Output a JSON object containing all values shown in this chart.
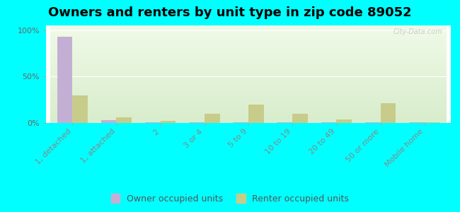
{
  "title": "Owners and renters by unit type in zip code 89052",
  "categories": [
    "1, detached",
    "1, attached",
    "2",
    "3 or 4",
    "5 to 9",
    "10 to 19",
    "20 to 49",
    "50 or more",
    "Mobile home"
  ],
  "owner_values": [
    93,
    3,
    0.5,
    0.5,
    0.5,
    0.5,
    0.5,
    0.5,
    0.5
  ],
  "renter_values": [
    30,
    6,
    2,
    10,
    20,
    10,
    4,
    21,
    1
  ],
  "owner_color": "#c4afd4",
  "renter_color": "#c8cc8a",
  "outer_bg": "#00ffff",
  "yticks": [
    0,
    50,
    100
  ],
  "ylabels": [
    "0%",
    "50%",
    "100%"
  ],
  "ylim": [
    0,
    105
  ],
  "bar_width": 0.35,
  "title_fontsize": 13,
  "legend_fontsize": 9,
  "tick_fontsize": 8,
  "watermark": "City-Data.com"
}
